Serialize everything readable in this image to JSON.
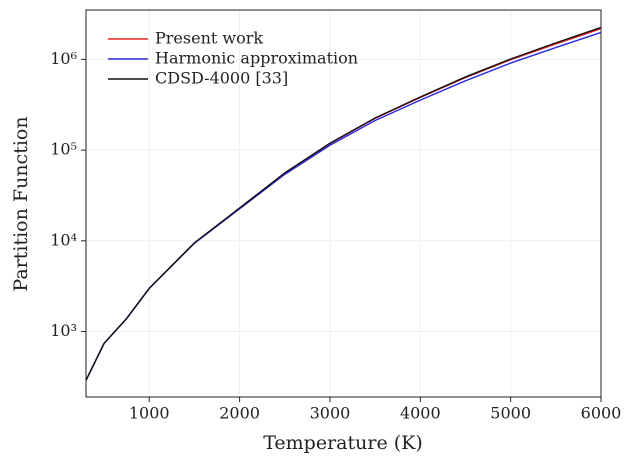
{
  "chart_data": {
    "type": "line",
    "xlabel": "Temperature (K)",
    "ylabel": "Partition Function",
    "x": [
      300,
      500,
      750,
      1000,
      1500,
      2000,
      2500,
      3000,
      3500,
      4000,
      4500,
      5000,
      5500,
      6000
    ],
    "series": [
      {
        "name": "Present work",
        "color": "#e8231f",
        "values": [
          290,
          740,
          1390,
          2990,
          9500,
          23000,
          56000,
          118000,
          224000,
          380000,
          630000,
          990000,
          1480000,
          2180000
        ]
      },
      {
        "name": "Harmonic approximation",
        "color": "#2a2ae0",
        "values": [
          290,
          740,
          1400,
          3000,
          9400,
          22500,
          54000,
          113000,
          212000,
          355000,
          580000,
          910000,
          1350000,
          1980000
        ]
      },
      {
        "name": "CDSD-4000 [33]",
        "color": "#111111",
        "values": [
          290,
          740,
          1390,
          2990,
          9500,
          23000,
          56000,
          119000,
          226000,
          385000,
          640000,
          1010000,
          1520000,
          2250000
        ]
      }
    ],
    "xlim": [
      300,
      6000
    ],
    "xticks": [
      1000,
      2000,
      3000,
      4000,
      5000,
      6000
    ],
    "ylim": [
      190,
      3500000
    ],
    "ylog": true,
    "yticks": [
      {
        "value": 1000,
        "label": "10³"
      },
      {
        "value": 10000,
        "label": "10⁴"
      },
      {
        "value": 100000,
        "label": "10⁵"
      },
      {
        "value": 1000000,
        "label": "10⁶"
      }
    ],
    "grid": true,
    "legend": "upper-left"
  }
}
